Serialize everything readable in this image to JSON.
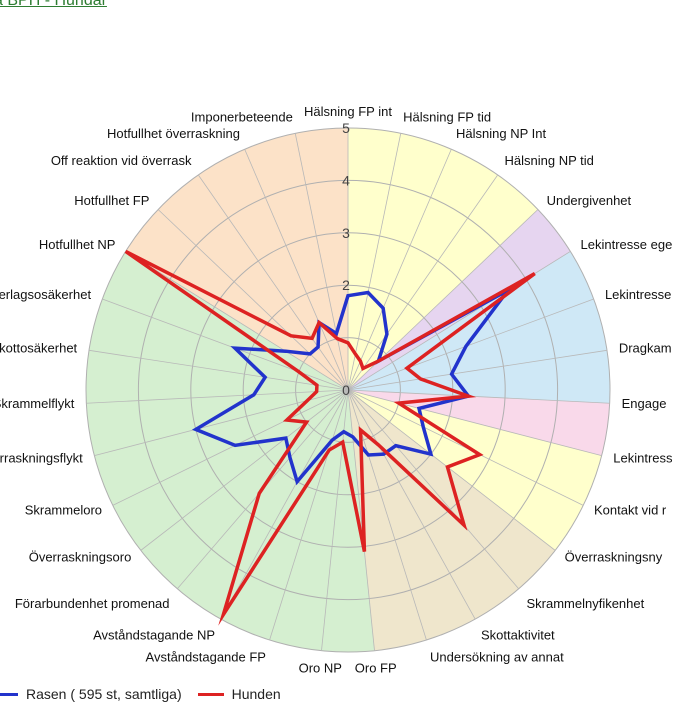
{
  "header": {
    "link_text": "a BPH - Hundar"
  },
  "legend": {
    "items": [
      {
        "label": "Rasen ( 595 st, samtliga)",
        "color": "#2233cc"
      },
      {
        "label": "Hunden",
        "color": "#dd2222"
      }
    ]
  },
  "chart_data": {
    "type": "radar",
    "rmax": 5,
    "ticks": [
      0,
      1,
      2,
      3,
      4,
      5
    ],
    "tick_labels": [
      "0",
      "",
      "2",
      "3",
      "4",
      "5"
    ],
    "categories": [
      "Hälsning FP int",
      "Hälsning FP tid",
      "Hälsning NP Int",
      "Hälsning NP tid",
      "Undergivenhet",
      "Lekintresse ege",
      "Lekintresse",
      "Dragkam",
      "Engage",
      "Lekintress",
      "Kontakt vid r",
      "Överraskningsny",
      "Skrammelnyfikenhet",
      "Skottaktivitet",
      "Undersökning av annat",
      "Oro FP",
      "Oro NP",
      "Avståndstagande FP",
      "Avståndstagande NP",
      "Förarbundenhet promenad",
      "Överraskningsoro",
      "Skrammeloro",
      "rraskningsflykt",
      "Skrammelflykt",
      "kottosäkerhet",
      "erlagsosäkerhet",
      "Hotfullhet NP",
      "Hotfullhet FP",
      "Off reaktion vid överrask",
      "Hotfullhet överraskning",
      "Imponerbeteende"
    ],
    "series": [
      {
        "name": "Rasen ( 595 st, samtliga)",
        "color": "#2233cc",
        "values": [
          1.8,
          1.9,
          1.7,
          1.3,
          0.8,
          3.6,
          2.4,
          2.0,
          2.3,
          1.4,
          1.6,
          2.0,
          1.4,
          1.4,
          1.3,
          0.9,
          0.8,
          1.0,
          2.0,
          1.7,
          1.5,
          2.4,
          3.0,
          1.8,
          1.6,
          2.3,
          1.4,
          1.0,
          1.0,
          1.4,
          1.1
        ]
      },
      {
        "name": "Hunden",
        "color": "#dd2222",
        "values": [
          0.9,
          0.7,
          0.6,
          0.5,
          0.8,
          4.2,
          1.2,
          1.4,
          2.3,
          1.0,
          2.8,
          2.4,
          3.4,
          1.2,
          0.8,
          3.1,
          1.0,
          1.2,
          4.9,
          2.6,
          1.0,
          1.3,
          0.8,
          0.6,
          0.6,
          1.0,
          5.0,
          1.5,
          1.2,
          1.4,
          1.0
        ]
      }
    ],
    "background_zones": [
      {
        "from": 0,
        "to": 4,
        "color": "#ffffcc"
      },
      {
        "from": 4,
        "to": 5,
        "color": "#e6d5f0"
      },
      {
        "from": 5,
        "to": 8,
        "color": "#cfe8f6"
      },
      {
        "from": 8,
        "to": 9,
        "color": "#f9d9ea"
      },
      {
        "from": 9,
        "to": 11,
        "color": "#ffffcc"
      },
      {
        "from": 11,
        "to": 15,
        "color": "#efe6cc"
      },
      {
        "from": 15,
        "to": 26,
        "color": "#d5efd0"
      },
      {
        "from": 26,
        "to": 31,
        "color": "#fce2c8"
      }
    ],
    "grid": true
  }
}
